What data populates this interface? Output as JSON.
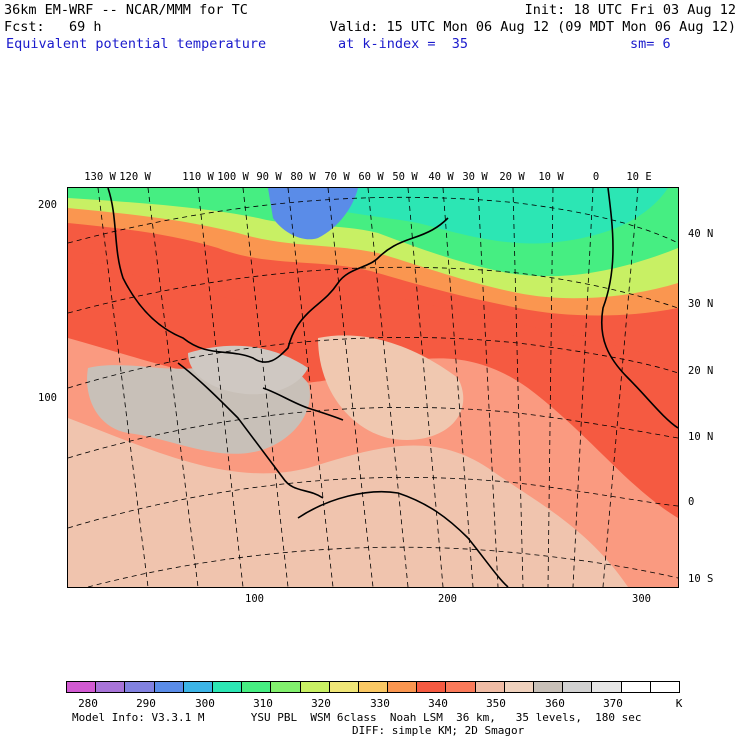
{
  "header": {
    "model": "36km EM-WRF -- NCAR/MMM for TC",
    "init": "Init: 18 UTC Fri 03 Aug 12",
    "fcst": "Fcst:   69 h",
    "valid": "Valid: 15 UTC Mon 06 Aug 12 (09 MDT Mon 06 Aug 12)",
    "field": "Equivalent potential temperature",
    "level": "at k-index =  35",
    "smooth": "sm= 6"
  },
  "map": {
    "lon_labels": [
      "130 W",
      "120 W",
      "110 W",
      "100 W",
      "90 W",
      "80 W",
      "70 W",
      "60 W",
      "50 W",
      "40 W",
      "30 W",
      "20 W",
      "10 W",
      "0",
      "10 E"
    ],
    "lat_labels": [
      "40 N",
      "30 N",
      "20 N",
      "10 N",
      "0",
      "10 S"
    ],
    "y_axis_labels": [
      "200",
      "100"
    ],
    "x_axis_labels": [
      "100",
      "200",
      "300"
    ]
  },
  "colorbar": {
    "colors": [
      "#d25ad2",
      "#a874d8",
      "#8282e0",
      "#5a8ce8",
      "#3cb4e6",
      "#2ce6b4",
      "#46ee82",
      "#82f06e",
      "#c8f064",
      "#f0e678",
      "#fac864",
      "#fa9650",
      "#f55a41",
      "#fa7a5a",
      "#f0bca5",
      "#f0d2be",
      "#c8c0b8",
      "#d2d2d2",
      "#e6e6e6",
      "#ffffff",
      "#ffffff"
    ],
    "labels": [
      "280",
      "290",
      "300",
      "310",
      "320",
      "330",
      "340",
      "350",
      "360",
      "370",
      "K"
    ]
  },
  "footer": {
    "line1": "Model Info: V3.3.1 M       YSU PBL  WSM 6class  Noah LSM  36 km,   35 levels,  180 sec",
    "line2": "DIFF: simple KM; 2D Smagor"
  }
}
